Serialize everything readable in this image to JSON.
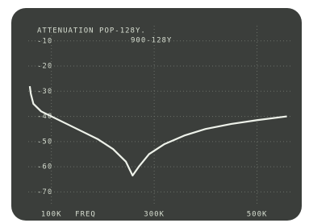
{
  "chart_data": {
    "type": "line",
    "title": "ATTENUATION POP-128Y.",
    "subtitle": "900-128Y",
    "x_label": "FREQ",
    "x": [
      58,
      60,
      65,
      80,
      100,
      130,
      160,
      190,
      220,
      245,
      258,
      270,
      290,
      320,
      360,
      400,
      450,
      500,
      558
    ],
    "series": [
      {
        "color": "#eef2ea",
        "values": [
          -28,
          -31,
          -35,
          -38,
          -40,
          -43,
          -46,
          -49,
          -53,
          -58,
          -63.5,
          -60,
          -55,
          -51,
          -47.5,
          -45,
          -43,
          -41.5,
          -40
        ]
      }
    ],
    "xlim": [
      55,
      565
    ],
    "xticks": [
      {
        "value": 100,
        "label": "100K"
      },
      {
        "value": 300,
        "label": "300K"
      },
      {
        "value": 500,
        "label": "500K"
      }
    ],
    "ylim": [
      -75,
      -4
    ],
    "yticks": [
      -10,
      -20,
      -30,
      -40,
      -50,
      -60,
      -70
    ],
    "grid": true
  }
}
